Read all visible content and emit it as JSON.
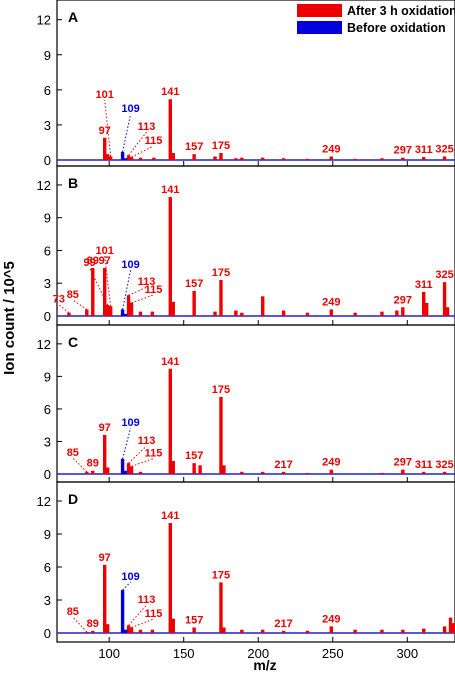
{
  "colors": {
    "after": "#ee0000",
    "before": "#0000dd",
    "axis": "#000000",
    "baseline": "#2222cc"
  },
  "legend": [
    {
      "label": "After 3 h oxidation",
      "color": "#ee0000"
    },
    {
      "label": "Before oxidation",
      "color": "#0000dd"
    }
  ],
  "chart_data": [
    {
      "type": "bar",
      "panel_label": "A",
      "xlabel": "m/z",
      "ylabel": "Ion count / 10^5",
      "xlim": [
        65,
        332
      ],
      "ylim": [
        0,
        13
      ],
      "yticks": [
        0,
        3,
        6,
        9,
        12
      ],
      "xticks": [
        100,
        150,
        200,
        250,
        300
      ],
      "series": [
        {
          "name": "After 3 h oxidation",
          "color": "#ee0000",
          "points": [
            [
              97,
              1.9
            ],
            [
              99,
              0.5
            ],
            [
              101,
              0.3
            ],
            [
              113,
              0.4
            ],
            [
              115,
              0.25
            ],
            [
              141,
              5.2
            ],
            [
              143,
              0.6
            ],
            [
              157,
              0.5
            ],
            [
              175,
              0.6
            ],
            [
              171,
              0.3
            ],
            [
              189,
              0.2
            ],
            [
              203,
              0.2
            ],
            [
              249,
              0.3
            ],
            [
              297,
              0.2
            ],
            [
              311,
              0.25
            ],
            [
              325,
              0.3
            ],
            [
              130,
              0.2
            ],
            [
              121,
              0.2
            ],
            [
              185,
              0.15
            ],
            [
              217,
              0.15
            ],
            [
              233,
              0.1
            ],
            [
              265,
              0.1
            ],
            [
              283,
              0.15
            ]
          ]
        },
        {
          "name": "Before oxidation",
          "color": "#0000dd",
          "points": [
            [
              109,
              0.7
            ],
            [
              111,
              0.15
            ]
          ]
        }
      ],
      "annotations": [
        {
          "text": "97",
          "x": 97,
          "color": "#ee0000"
        },
        {
          "text": "101",
          "x": 101,
          "color": "#ee0000"
        },
        {
          "text": "109",
          "x": 109,
          "color": "#0000dd"
        },
        {
          "text": "113",
          "x": 113,
          "color": "#ee0000"
        },
        {
          "text": "115",
          "x": 115,
          "color": "#ee0000"
        },
        {
          "text": "141",
          "x": 141,
          "color": "#ee0000"
        },
        {
          "text": "157",
          "x": 157,
          "color": "#ee0000"
        },
        {
          "text": "175",
          "x": 175,
          "color": "#ee0000"
        },
        {
          "text": "249",
          "x": 249,
          "color": "#ee0000"
        },
        {
          "text": "297",
          "x": 297,
          "color": "#ee0000"
        },
        {
          "text": "311",
          "x": 311,
          "color": "#ee0000"
        },
        {
          "text": "325",
          "x": 325,
          "color": "#ee0000"
        }
      ]
    },
    {
      "type": "bar",
      "panel_label": "B",
      "xlabel": "m/z",
      "ylabel": "Ion count / 10^5",
      "xlim": [
        65,
        332
      ],
      "ylim": [
        0,
        13
      ],
      "yticks": [
        0,
        3,
        6,
        9,
        12
      ],
      "xticks": [
        100,
        150,
        200,
        250,
        300
      ],
      "series": [
        {
          "name": "After 3 h oxidation",
          "color": "#ee0000",
          "points": [
            [
              73,
              0.3
            ],
            [
              85,
              0.6
            ],
            [
              89,
              4.4
            ],
            [
              97,
              4.4
            ],
            [
              99,
              1.0
            ],
            [
              101,
              0.9
            ],
            [
              113,
              1.9
            ],
            [
              115,
              1.2
            ],
            [
              141,
              10.9
            ],
            [
              143,
              1.3
            ],
            [
              157,
              2.3
            ],
            [
              175,
              3.3
            ],
            [
              203,
              1.8
            ],
            [
              249,
              0.6
            ],
            [
              297,
              0.8
            ],
            [
              311,
              2.2
            ],
            [
              313,
              1.2
            ],
            [
              325,
              3.1
            ],
            [
              327,
              0.8
            ],
            [
              121,
              0.4
            ],
            [
              129,
              0.4
            ],
            [
              171,
              0.4
            ],
            [
              185,
              0.5
            ],
            [
              189,
              0.3
            ],
            [
              217,
              0.5
            ],
            [
              233,
              0.3
            ],
            [
              265,
              0.3
            ],
            [
              283,
              0.4
            ],
            [
              293,
              0.5
            ]
          ]
        },
        {
          "name": "Before oxidation",
          "color": "#0000dd",
          "points": [
            [
              109,
              0.6
            ],
            [
              111,
              0.2
            ]
          ]
        }
      ],
      "annotations": [
        {
          "text": "73",
          "x": 73,
          "color": "#ee0000"
        },
        {
          "text": "85",
          "x": 85,
          "color": "#ee0000"
        },
        {
          "text": "89",
          "x": 89,
          "color": "#ee0000"
        },
        {
          "text": "97",
          "x": 97,
          "color": "#ee0000"
        },
        {
          "text": "99",
          "x": 99,
          "color": "#ee0000"
        },
        {
          "text": "101",
          "x": 101,
          "color": "#ee0000"
        },
        {
          "text": "109",
          "x": 109,
          "color": "#0000dd"
        },
        {
          "text": "113",
          "x": 113,
          "color": "#ee0000"
        },
        {
          "text": "115",
          "x": 115,
          "color": "#ee0000"
        },
        {
          "text": "141",
          "x": 141,
          "color": "#ee0000"
        },
        {
          "text": "157",
          "x": 157,
          "color": "#ee0000"
        },
        {
          "text": "175",
          "x": 175,
          "color": "#ee0000"
        },
        {
          "text": "249",
          "x": 249,
          "color": "#ee0000"
        },
        {
          "text": "297",
          "x": 297,
          "color": "#ee0000"
        },
        {
          "text": "311",
          "x": 311,
          "color": "#ee0000"
        },
        {
          "text": "325",
          "x": 325,
          "color": "#ee0000"
        }
      ]
    },
    {
      "type": "bar",
      "panel_label": "C",
      "xlabel": "m/z",
      "ylabel": "Ion count / 10^5",
      "xlim": [
        65,
        332
      ],
      "ylim": [
        0,
        13
      ],
      "yticks": [
        0,
        3,
        6,
        9,
        12
      ],
      "xticks": [
        100,
        150,
        200,
        250,
        300
      ],
      "series": [
        {
          "name": "After 3 h oxidation",
          "color": "#ee0000",
          "points": [
            [
              85,
              0.2
            ],
            [
              89,
              0.3
            ],
            [
              97,
              3.6
            ],
            [
              99,
              0.6
            ],
            [
              113,
              1.0
            ],
            [
              115,
              0.7
            ],
            [
              141,
              9.7
            ],
            [
              143,
              1.2
            ],
            [
              157,
              1.0
            ],
            [
              161,
              0.8
            ],
            [
              175,
              7.1
            ],
            [
              177,
              0.8
            ],
            [
              217,
              0.2
            ],
            [
              249,
              0.4
            ],
            [
              297,
              0.4
            ],
            [
              311,
              0.2
            ],
            [
              325,
              0.2
            ],
            [
              121,
              0.2
            ],
            [
              189,
              0.2
            ],
            [
              203,
              0.2
            ],
            [
              233,
              0.1
            ],
            [
              283,
              0.1
            ]
          ]
        },
        {
          "name": "Before oxidation",
          "color": "#0000dd",
          "points": [
            [
              109,
              1.4
            ],
            [
              111,
              0.3
            ]
          ]
        }
      ],
      "annotations": [
        {
          "text": "85",
          "x": 85,
          "color": "#ee0000"
        },
        {
          "text": "89",
          "x": 89,
          "color": "#ee0000"
        },
        {
          "text": "97",
          "x": 97,
          "color": "#ee0000"
        },
        {
          "text": "109",
          "x": 109,
          "color": "#0000dd"
        },
        {
          "text": "113",
          "x": 113,
          "color": "#ee0000"
        },
        {
          "text": "115",
          "x": 115,
          "color": "#ee0000"
        },
        {
          "text": "141",
          "x": 141,
          "color": "#ee0000"
        },
        {
          "text": "157",
          "x": 157,
          "color": "#ee0000"
        },
        {
          "text": "175",
          "x": 175,
          "color": "#ee0000"
        },
        {
          "text": "217",
          "x": 217,
          "color": "#ee0000"
        },
        {
          "text": "249",
          "x": 249,
          "color": "#ee0000"
        },
        {
          "text": "297",
          "x": 297,
          "color": "#ee0000"
        },
        {
          "text": "311",
          "x": 311,
          "color": "#ee0000"
        },
        {
          "text": "325",
          "x": 325,
          "color": "#ee0000"
        }
      ]
    },
    {
      "type": "bar",
      "panel_label": "D",
      "xlabel": "m/z",
      "ylabel": "Ion count / 10^5",
      "xlim": [
        65,
        332
      ],
      "ylim": [
        0,
        13
      ],
      "yticks": [
        0,
        3,
        6,
        9,
        12
      ],
      "xticks": [
        100,
        150,
        200,
        250,
        300
      ],
      "series": [
        {
          "name": "After 3 h oxidation",
          "color": "#ee0000",
          "points": [
            [
              85,
              0.1
            ],
            [
              89,
              0.2
            ],
            [
              97,
              6.2
            ],
            [
              99,
              0.8
            ],
            [
              113,
              0.7
            ],
            [
              115,
              0.5
            ],
            [
              141,
              10.0
            ],
            [
              143,
              1.3
            ],
            [
              157,
              0.5
            ],
            [
              175,
              4.6
            ],
            [
              177,
              0.5
            ],
            [
              217,
              0.2
            ],
            [
              249,
              0.6
            ],
            [
              121,
              0.3
            ],
            [
              129,
              0.3
            ],
            [
              189,
              0.3
            ],
            [
              203,
              0.3
            ],
            [
              233,
              0.2
            ],
            [
              265,
              0.3
            ],
            [
              283,
              0.3
            ],
            [
              297,
              0.3
            ],
            [
              311,
              0.4
            ],
            [
              325,
              0.6
            ],
            [
              329,
              1.4
            ],
            [
              331,
              0.9
            ]
          ]
        },
        {
          "name": "Before oxidation",
          "color": "#0000dd",
          "points": [
            [
              109,
              3.9
            ],
            [
              111,
              0.3
            ]
          ]
        }
      ],
      "annotations": [
        {
          "text": "85",
          "x": 85,
          "color": "#ee0000"
        },
        {
          "text": "89",
          "x": 89,
          "color": "#ee0000"
        },
        {
          "text": "97",
          "x": 97,
          "color": "#ee0000"
        },
        {
          "text": "109",
          "x": 109,
          "color": "#0000dd"
        },
        {
          "text": "113",
          "x": 113,
          "color": "#ee0000"
        },
        {
          "text": "115",
          "x": 115,
          "color": "#ee0000"
        },
        {
          "text": "141",
          "x": 141,
          "color": "#ee0000"
        },
        {
          "text": "157",
          "x": 157,
          "color": "#ee0000"
        },
        {
          "text": "175",
          "x": 175,
          "color": "#ee0000"
        },
        {
          "text": "217",
          "x": 217,
          "color": "#ee0000"
        },
        {
          "text": "249",
          "x": 249,
          "color": "#ee0000"
        }
      ]
    }
  ]
}
